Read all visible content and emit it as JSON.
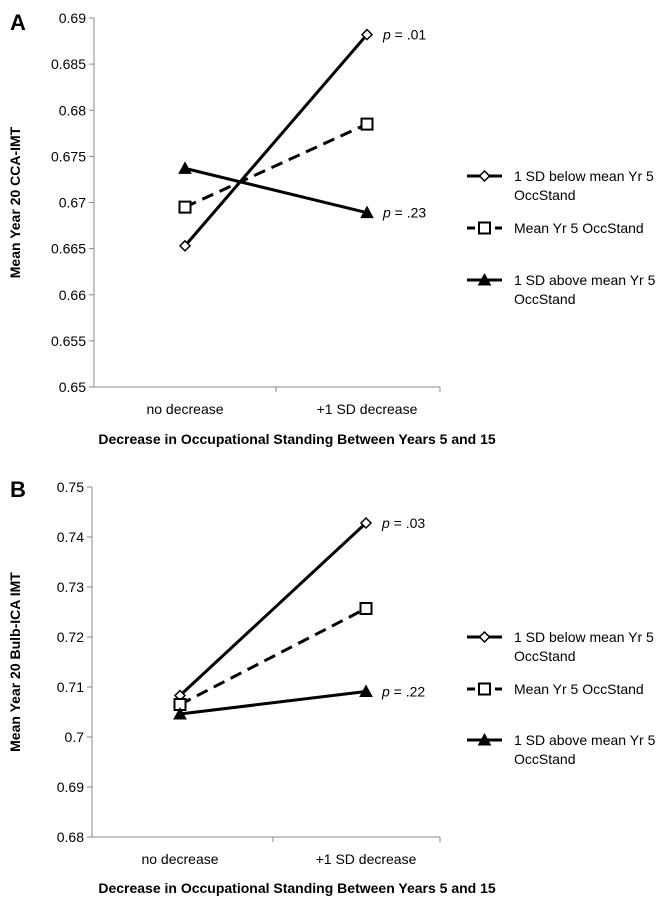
{
  "chart_data": [
    {
      "panel": "A",
      "type": "line",
      "categories": [
        "no decrease",
        "+1 SD decrease"
      ],
      "ylabel": "Mean Year 20 CCA-IMT",
      "xlabel": "Decrease in Occupational Standing Between Years 5 and 15",
      "ylim": [
        0.65,
        0.69
      ],
      "ytick_step": 0.005,
      "yticks": [
        "0.65",
        "0.655",
        "0.66",
        "0.665",
        "0.67",
        "0.675",
        "0.68",
        "0.685",
        "0.69"
      ],
      "grid": false,
      "legend_position": "right",
      "series": [
        {
          "name": "1 SD below mean Yr 5 OccStand",
          "values": [
            0.6653,
            0.6882
          ],
          "marker": "diamond-open",
          "line": "solid",
          "annotation": "p = .01"
        },
        {
          "name": "Mean Yr 5 OccStand",
          "values": [
            0.6695,
            0.6785
          ],
          "marker": "square-open",
          "line": "dashed"
        },
        {
          "name": "1 SD above mean Yr 5 OccStand",
          "values": [
            0.6737,
            0.6689
          ],
          "marker": "triangle-filled",
          "line": "solid",
          "annotation": "p = .23"
        }
      ]
    },
    {
      "panel": "B",
      "type": "line",
      "categories": [
        "no decrease",
        "+1 SD decrease"
      ],
      "ylabel": "Mean Year 20 Bulb-ICA IMT",
      "xlabel": "Decrease in Occupational Standing Between Years 5 and 15",
      "ylim": [
        0.68,
        0.75
      ],
      "ytick_step": 0.01,
      "yticks": [
        "0.68",
        "0.69",
        "0.7",
        "0.71",
        "0.72",
        "0.73",
        "0.74",
        "0.75"
      ],
      "grid": false,
      "legend_position": "right",
      "series": [
        {
          "name": "1 SD below mean Yr 5 OccStand",
          "values": [
            0.7083,
            0.7428
          ],
          "marker": "diamond-open",
          "line": "solid",
          "annotation": "p = .03"
        },
        {
          "name": "Mean Yr 5 OccStand",
          "values": [
            0.7065,
            0.7257
          ],
          "marker": "square-open",
          "line": "dashed"
        },
        {
          "name": "1 SD above mean Yr 5 OccStand",
          "values": [
            0.7046,
            0.7091
          ],
          "marker": "triangle-filled",
          "line": "solid",
          "annotation": "p = .22"
        }
      ]
    }
  ]
}
